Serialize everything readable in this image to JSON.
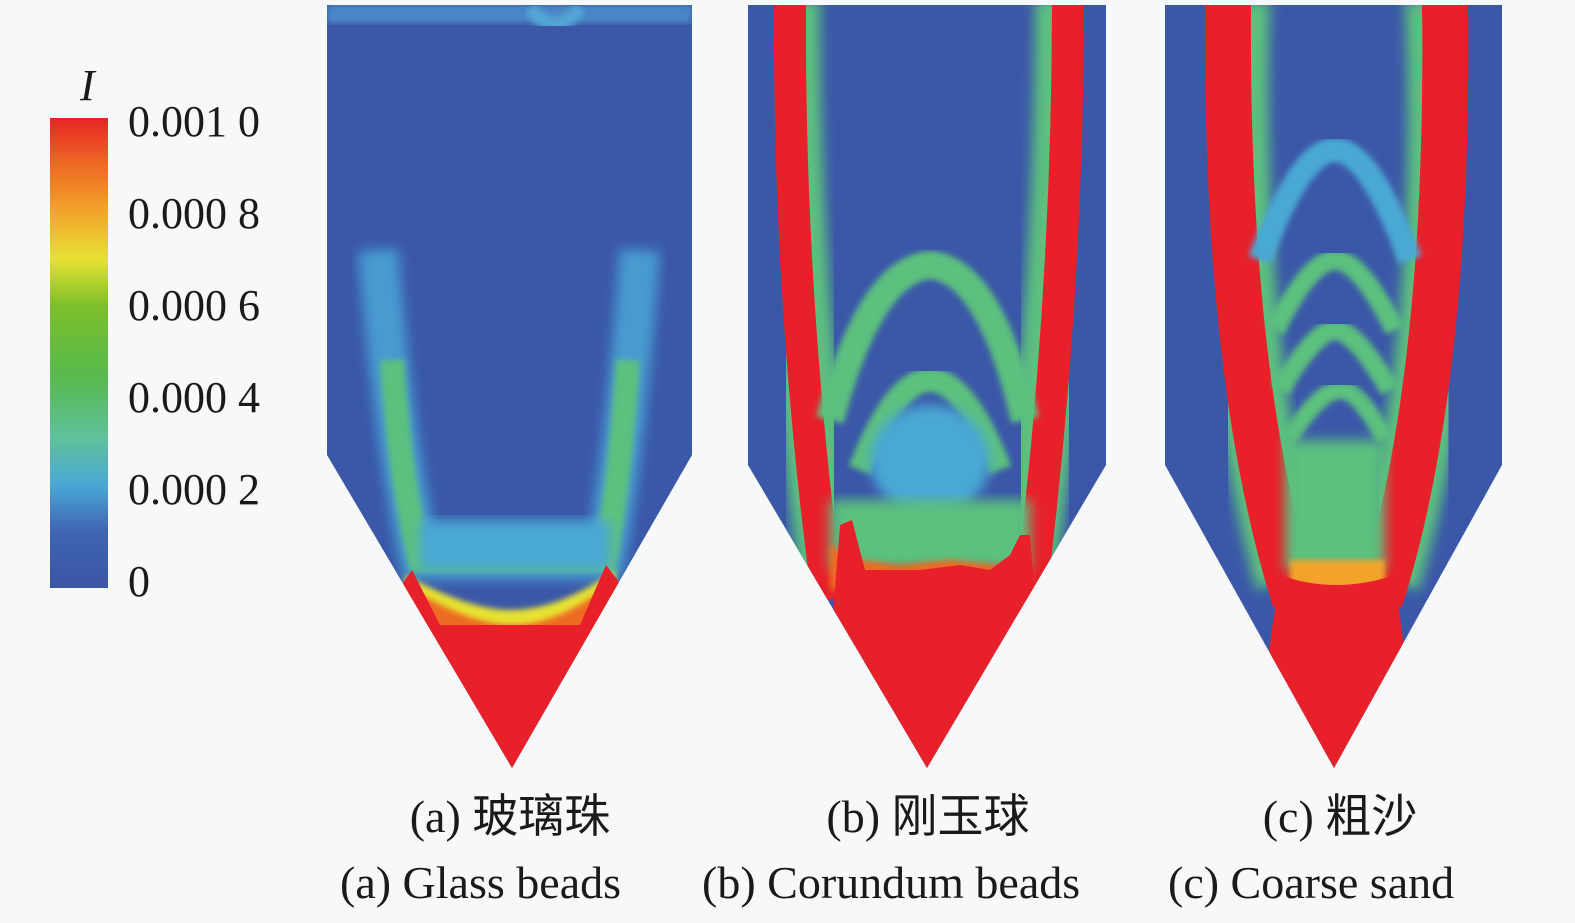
{
  "colorbar": {
    "symbol": "I",
    "ticks": [
      "0.001 0",
      "0.000 8",
      "0.000 6",
      "0.000 4",
      "0.000 2",
      "0"
    ],
    "colors": [
      "#3b55a4",
      "#3f64b4",
      "#4aa8d4",
      "#5fc19a",
      "#58b94e",
      "#7cbf2a",
      "#e6e233",
      "#f2a42c",
      "#ee6a23",
      "#e52525"
    ]
  },
  "panels": [
    {
      "id": "a",
      "caption_cn": "(a) 玻璃珠",
      "caption_en": "(a) Glass beads"
    },
    {
      "id": "b",
      "caption_cn": "(b) 刚玉球",
      "caption_en": "(b) Corundum beads"
    },
    {
      "id": "c",
      "caption_cn": "(c) 粗沙",
      "caption_en": "(c) Coarse sand"
    }
  ],
  "colors": {
    "low": "#3b58a8",
    "mid": "#5ec07a",
    "high": "#e8202a"
  }
}
